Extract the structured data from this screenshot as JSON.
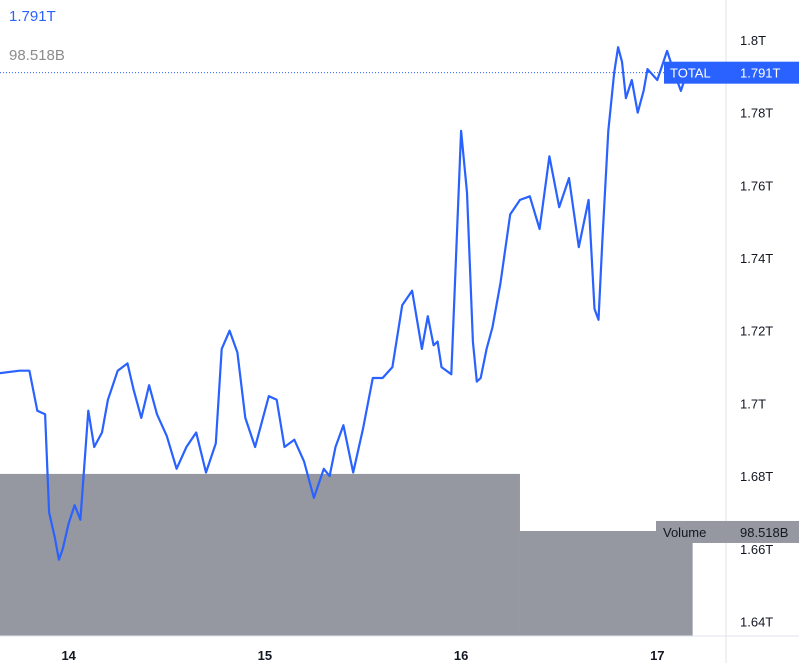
{
  "header": {
    "price": "1.791T",
    "volume": "98.518B"
  },
  "colors": {
    "line": "#2962ff",
    "volume": "#9598a1",
    "axis_text": "#131722",
    "grid": "#f0f3fa"
  },
  "chart_data": {
    "type": "line",
    "series": [
      {
        "name": "TOTAL",
        "x": [
          13.6,
          13.75,
          13.8,
          13.84,
          13.88,
          13.9,
          13.93,
          13.95,
          13.97,
          14.0,
          14.03,
          14.06,
          14.1,
          14.13,
          14.17,
          14.2,
          14.25,
          14.3,
          14.33,
          14.37,
          14.41,
          14.45,
          14.5,
          14.55,
          14.6,
          14.65,
          14.7,
          14.75,
          14.78,
          14.82,
          14.86,
          14.9,
          14.95,
          14.98,
          15.02,
          15.06,
          15.1,
          15.15,
          15.2,
          15.25,
          15.3,
          15.33,
          15.36,
          15.4,
          15.45,
          15.5,
          15.55,
          15.6,
          15.65,
          15.7,
          15.75,
          15.8,
          15.83,
          15.86,
          15.88,
          15.9,
          15.95,
          16.0,
          16.03,
          16.06,
          16.08,
          16.1,
          16.13,
          16.16,
          16.2,
          16.25,
          16.3,
          16.35,
          16.4,
          16.45,
          16.5,
          16.55,
          16.6,
          16.65,
          16.68,
          16.7,
          16.72,
          16.75,
          16.78,
          16.8,
          16.82,
          16.84,
          16.87,
          16.9,
          16.93,
          16.95,
          17.0,
          17.05,
          17.08,
          17.12,
          17.15
        ],
        "y": [
          1.708,
          1.709,
          1.709,
          1.698,
          1.697,
          1.67,
          1.663,
          1.657,
          1.66,
          1.667,
          1.672,
          1.668,
          1.698,
          1.688,
          1.692,
          1.701,
          1.709,
          1.711,
          1.704,
          1.696,
          1.705,
          1.697,
          1.691,
          1.682,
          1.688,
          1.692,
          1.681,
          1.689,
          1.715,
          1.72,
          1.714,
          1.696,
          1.688,
          1.694,
          1.702,
          1.701,
          1.688,
          1.69,
          1.684,
          1.674,
          1.682,
          1.68,
          1.688,
          1.694,
          1.681,
          1.693,
          1.707,
          1.707,
          1.71,
          1.727,
          1.731,
          1.715,
          1.724,
          1.716,
          1.717,
          1.71,
          1.708,
          1.775,
          1.758,
          1.717,
          1.706,
          1.707,
          1.715,
          1.721,
          1.733,
          1.752,
          1.756,
          1.757,
          1.748,
          1.768,
          1.754,
          1.762,
          1.743,
          1.756,
          1.726,
          1.723,
          1.745,
          1.775,
          1.791,
          1.798,
          1.794,
          1.784,
          1.789,
          1.78,
          1.786,
          1.792,
          1.789,
          1.797,
          1.792,
          1.786,
          1.791
        ]
      }
    ],
    "volume": {
      "label": "Volume",
      "value_label": "98.518B",
      "bars": [
        {
          "x_start": 13.6,
          "x_end": 16.3,
          "y": 1.6806
        },
        {
          "x_start": 16.3,
          "x_end": 17.18,
          "y": 1.6649
        }
      ]
    },
    "last_price_label": {
      "name": "TOTAL",
      "value": "1.791T",
      "y": 1.791
    },
    "xlabel": "",
    "ylabel": "",
    "x_ticks": [
      {
        "label": "14",
        "value": 14.0
      },
      {
        "label": "15",
        "value": 15.0
      },
      {
        "label": "16",
        "value": 16.0
      },
      {
        "label": "17",
        "value": 17.0
      }
    ],
    "y_ticks": [
      {
        "label": "1.8T",
        "value": 1.8
      },
      {
        "label": "1.78T",
        "value": 1.78
      },
      {
        "label": "1.76T",
        "value": 1.76
      },
      {
        "label": "1.74T",
        "value": 1.74
      },
      {
        "label": "1.72T",
        "value": 1.72
      },
      {
        "label": "1.7T",
        "value": 1.7
      },
      {
        "label": "1.68T",
        "value": 1.68
      },
      {
        "label": "1.66T",
        "value": 1.66
      },
      {
        "label": "1.64T",
        "value": 1.64
      }
    ],
    "ylim": [
      1.636,
      1.811
    ],
    "xlim": [
      13.65,
      17.35
    ],
    "grid": false
  }
}
